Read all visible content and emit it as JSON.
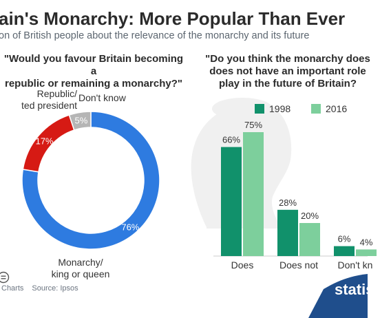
{
  "header": {
    "title": "ain's Monarchy: More Popular Than Ever",
    "subtitle": "on of British people about the relevance of the monarchy and its future"
  },
  "footer": {
    "credit": "Charts",
    "source": "Source: Ipsos",
    "brand": "statis",
    "cc_icon": "cc-icon",
    "equals_icon": "equals-icon"
  },
  "colors": {
    "monarchy": "#2e7be0",
    "republic": "#d61a14",
    "dont_know": "#b5b5b5",
    "y1998": "#11916b",
    "y2016": "#7dcf9c",
    "brand_bg": "#1f4e8c"
  },
  "chart_data": [
    {
      "type": "pie",
      "donut": true,
      "question": "\"Would you favour Britain becoming a republic or remaining a monarchy?\"",
      "question_lines": [
        "\"Would you favour Britain becoming a",
        "republic or remaining a monarchy?\""
      ],
      "slices": [
        {
          "label_lines": [
            "Monarchy/",
            "king or queen"
          ],
          "value": 76,
          "value_label": "76%"
        },
        {
          "label_lines": [
            "Republic/",
            "ted president"
          ],
          "value": 17,
          "value_label": "17%"
        },
        {
          "label_lines": [
            "Don't know"
          ],
          "value": 5,
          "value_label": "5%"
        }
      ]
    },
    {
      "type": "bar",
      "question": "\"Do you think the monarchy does does not have an important role play in the future of Britain?\"",
      "question_lines": [
        "\"Do you think the monarchy does",
        "does not have an important role",
        "play in the future of Britain?"
      ],
      "categories": [
        "Does",
        "Does not",
        "Don't kn"
      ],
      "series": [
        {
          "name": "1998",
          "values": [
            66,
            28,
            6
          ],
          "labels": [
            "66%",
            "28%",
            "6%"
          ]
        },
        {
          "name": "2016",
          "values": [
            75,
            20,
            4
          ],
          "labels": [
            "75%",
            "20%",
            "4%"
          ]
        }
      ],
      "ylim": [
        0,
        80
      ]
    }
  ]
}
